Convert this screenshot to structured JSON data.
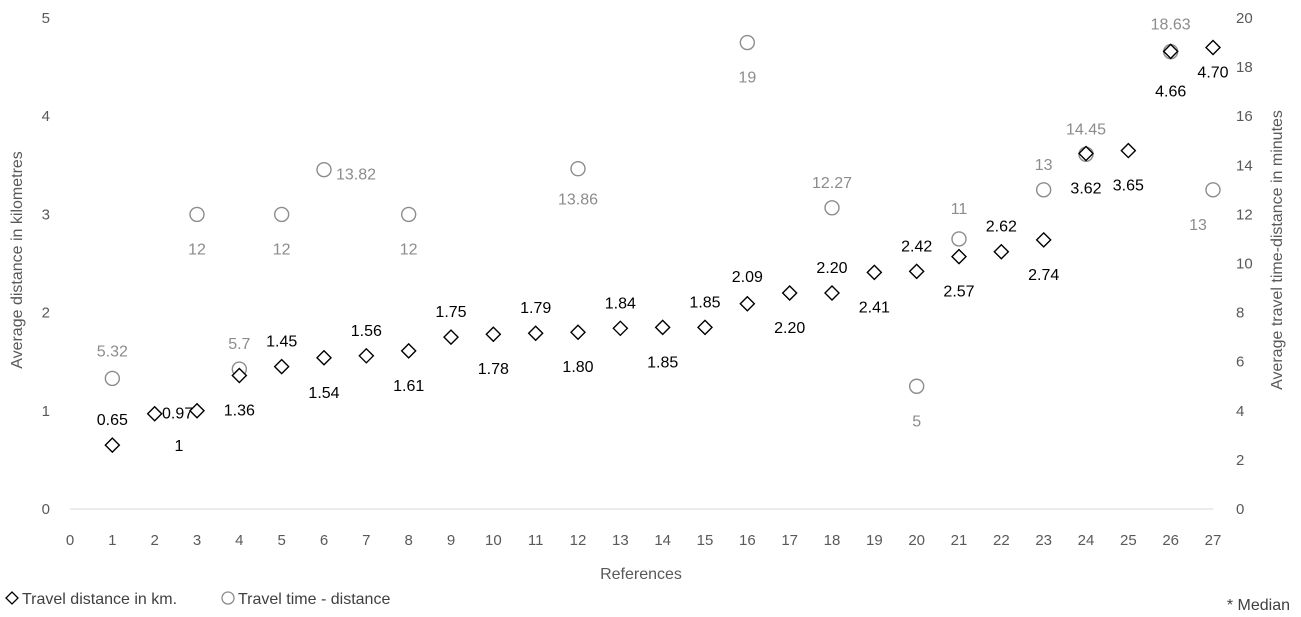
{
  "chart_data": {
    "type": "scatter",
    "xlabel": "References",
    "ylabel": "Average distance in kilometres",
    "y2label": "Average travel time-distance in minutes",
    "xlim": [
      0,
      27
    ],
    "ylim": [
      0,
      5
    ],
    "y2lim": [
      0,
      20
    ],
    "x_ticks": [
      "0",
      "1",
      "2",
      "3",
      "4",
      "5",
      "6",
      "7",
      "8",
      "9",
      "10",
      "11",
      "12",
      "13",
      "14",
      "15",
      "16",
      "17",
      "18",
      "19",
      "20",
      "21",
      "22",
      "23",
      "24",
      "25",
      "26",
      "27"
    ],
    "y_ticks": [
      "0",
      "1",
      "2",
      "3",
      "4",
      "5"
    ],
    "y2_ticks": [
      "0",
      "2",
      "4",
      "6",
      "8",
      "10",
      "12",
      "14",
      "16",
      "18",
      "20"
    ],
    "grid": false,
    "legend_position": "bottom-left",
    "series": [
      {
        "name": "Travel distance in km.",
        "axis": "left",
        "marker": "diamond",
        "color": "#000000",
        "points": [
          {
            "x": 1,
            "y": 0.65,
            "label": "0.65"
          },
          {
            "x": 2,
            "y": 0.97,
            "label": "0.97*"
          },
          {
            "x": 3,
            "y": 1.0,
            "label": "1"
          },
          {
            "x": 4,
            "y": 1.36,
            "label": "1.36"
          },
          {
            "x": 5,
            "y": 1.45,
            "label": "1.45"
          },
          {
            "x": 6,
            "y": 1.54,
            "label": "1.54"
          },
          {
            "x": 7,
            "y": 1.56,
            "label": "1.56"
          },
          {
            "x": 8,
            "y": 1.61,
            "label": "1.61"
          },
          {
            "x": 9,
            "y": 1.75,
            "label": "1.75"
          },
          {
            "x": 10,
            "y": 1.78,
            "label": "1.78"
          },
          {
            "x": 11,
            "y": 1.79,
            "label": "1.79"
          },
          {
            "x": 12,
            "y": 1.8,
            "label": "1.80"
          },
          {
            "x": 13,
            "y": 1.84,
            "label": "1.84"
          },
          {
            "x": 14,
            "y": 1.85,
            "label": "1.85"
          },
          {
            "x": 15,
            "y": 1.85,
            "label": "1.85"
          },
          {
            "x": 16,
            "y": 2.09,
            "label": "2.09"
          },
          {
            "x": 17,
            "y": 2.2,
            "label": "2.20"
          },
          {
            "x": 18,
            "y": 2.2,
            "label": "2.20"
          },
          {
            "x": 19,
            "y": 2.41,
            "label": "2.41"
          },
          {
            "x": 20,
            "y": 2.42,
            "label": "2.42"
          },
          {
            "x": 21,
            "y": 2.57,
            "label": "2.57"
          },
          {
            "x": 22,
            "y": 2.62,
            "label": "2.62"
          },
          {
            "x": 23,
            "y": 2.74,
            "label": "2.74"
          },
          {
            "x": 24,
            "y": 3.62,
            "label": "3.62"
          },
          {
            "x": 25,
            "y": 3.65,
            "label": "3.65"
          },
          {
            "x": 26,
            "y": 4.66,
            "label": "4.66"
          },
          {
            "x": 27,
            "y": 4.7,
            "label": "4.70"
          }
        ]
      },
      {
        "name": "Travel time - distance",
        "axis": "right",
        "marker": "circle",
        "color": "#8c8c8c",
        "points": [
          {
            "x": 1,
            "y": 5.32,
            "label": "5.32"
          },
          {
            "x": 3,
            "y": 12,
            "label": "12"
          },
          {
            "x": 4,
            "y": 5.7,
            "label": "5.7"
          },
          {
            "x": 5,
            "y": 12,
            "label": "12"
          },
          {
            "x": 6,
            "y": 13.82,
            "label": "13.82"
          },
          {
            "x": 8,
            "y": 12,
            "label": "12"
          },
          {
            "x": 12,
            "y": 13.86,
            "label": "13.86"
          },
          {
            "x": 16,
            "y": 19,
            "label": "19"
          },
          {
            "x": 18,
            "y": 12.27,
            "label": "12.27"
          },
          {
            "x": 20,
            "y": 5,
            "label": "5"
          },
          {
            "x": 21,
            "y": 11,
            "label": "11"
          },
          {
            "x": 23,
            "y": 13,
            "label": "13"
          },
          {
            "x": 24,
            "y": 14.45,
            "label": "14.45"
          },
          {
            "x": 26,
            "y": 18.63,
            "label": "18.63"
          },
          {
            "x": 27,
            "y": 13,
            "label": "13"
          }
        ]
      }
    ],
    "footnote": "* Median"
  }
}
